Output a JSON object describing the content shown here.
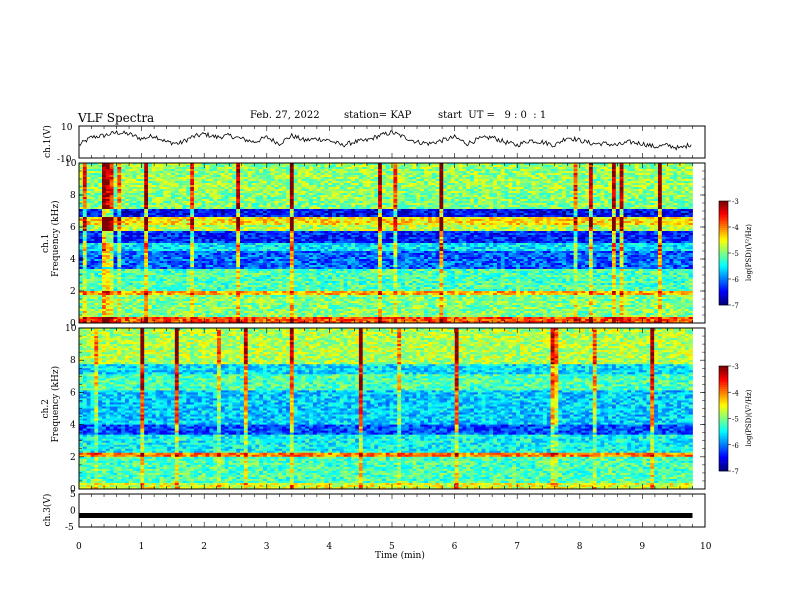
{
  "header": {
    "title": "VLF Spectra",
    "date": "Feb. 27, 2022",
    "station": "station= KAP",
    "start": "start  UT =   9 : 0  : 1"
  },
  "chart_data": [
    {
      "type": "line",
      "panel": "ch1-waveform",
      "ylabel": "ch.1(V)",
      "ylim": [
        -10,
        10
      ],
      "yticks": [
        "10",
        "-10"
      ],
      "xlim": [
        0,
        10
      ],
      "series": [
        {
          "values_note_free": true,
          "approx": [
            [
              0.0,
              -2
            ],
            [
              0.2,
              3
            ],
            [
              0.4,
              4
            ],
            [
              0.6,
              6
            ],
            [
              0.8,
              5
            ],
            [
              1.0,
              2
            ],
            [
              1.2,
              4
            ],
            [
              1.4,
              0
            ],
            [
              1.6,
              -1
            ],
            [
              1.8,
              3
            ],
            [
              2.0,
              5
            ],
            [
              2.2,
              3
            ],
            [
              2.4,
              4
            ],
            [
              2.6,
              2
            ],
            [
              2.8,
              0
            ],
            [
              3.0,
              3
            ],
            [
              3.2,
              -1
            ],
            [
              3.4,
              4
            ],
            [
              3.6,
              1
            ],
            [
              3.8,
              2
            ],
            [
              4.0,
              1
            ],
            [
              4.2,
              -2
            ],
            [
              4.4,
              0
            ],
            [
              4.6,
              1
            ],
            [
              4.8,
              4
            ],
            [
              5.0,
              6
            ],
            [
              5.2,
              3
            ],
            [
              5.4,
              0
            ],
            [
              5.6,
              -1
            ],
            [
              5.8,
              1
            ],
            [
              6.0,
              3
            ],
            [
              6.2,
              -1
            ],
            [
              6.4,
              2
            ],
            [
              6.6,
              3
            ],
            [
              6.8,
              0
            ],
            [
              7.0,
              -2
            ],
            [
              7.2,
              1
            ],
            [
              7.4,
              0
            ],
            [
              7.6,
              -2
            ],
            [
              7.8,
              3
            ],
            [
              8.0,
              1
            ],
            [
              8.2,
              -1
            ],
            [
              8.4,
              -1
            ],
            [
              8.6,
              -2
            ],
            [
              8.8,
              0
            ],
            [
              9.0,
              -1
            ],
            [
              9.2,
              -3
            ],
            [
              9.4,
              -2
            ],
            [
              9.6,
              -4
            ],
            [
              9.8,
              -1
            ]
          ]
        }
      ]
    },
    {
      "type": "heatmap",
      "panel": "ch1-spectrogram",
      "ylabel": "ch.1 Frequency (kHz)",
      "ylim": [
        0,
        10
      ],
      "yticks": [
        "0",
        "2",
        "4",
        "6",
        "8",
        "10"
      ],
      "xlim": [
        0,
        10
      ],
      "colorbar": {
        "label": "log(PSD)(V²/Hz)",
        "range": [
          -7,
          -3
        ],
        "ticks": [
          "-3",
          "-4",
          "-5",
          "-6",
          "-7"
        ]
      }
    },
    {
      "type": "heatmap",
      "panel": "ch2-spectrogram",
      "ylabel": "ch.2 Frequency (kHz)",
      "ylim": [
        0,
        10
      ],
      "yticks": [
        "0",
        "2",
        "4",
        "6",
        "8",
        "10"
      ],
      "xlim": [
        0,
        10
      ],
      "colorbar": {
        "label": "log(PSD)(V²/Hz)",
        "range": [
          -7,
          -3
        ],
        "ticks": [
          "-3",
          "-4",
          "-5",
          "-6",
          "-7"
        ]
      }
    },
    {
      "type": "line",
      "panel": "ch3-waveform",
      "ylabel": "ch.3(V)",
      "ylim": [
        -5,
        5
      ],
      "yticks": [
        "5",
        "0",
        "-5"
      ],
      "xlim": [
        0,
        10
      ],
      "series": [
        {
          "constant": -1.5
        }
      ]
    }
  ],
  "xaxis": {
    "label": "Time  (min)",
    "ticks": [
      "0",
      "1",
      "2",
      "3",
      "4",
      "5",
      "6",
      "7",
      "8",
      "9",
      "10"
    ]
  }
}
